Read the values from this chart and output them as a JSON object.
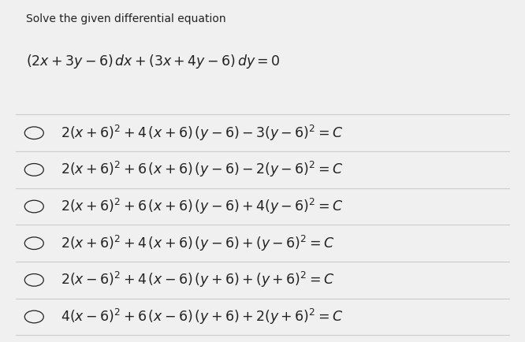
{
  "title": "Solve the given differential equation",
  "equation": "$(2x + 3y - 6)\\,dx + (3x + 4y - 6)\\,dy = 0$",
  "options": [
    "$2(x+6)^2 + 4\\,(x+6)\\,(y-6) - 3(y-6)^2 = C$",
    "$2(x+6)^2 + 6\\,(x+6)\\,(y-6) - 2(y-6)^2 = C$",
    "$2(x+6)^2 + 6\\,(x+6)\\,(y-6) + 4(y-6)^2 = C$",
    "$2(x+6)^2 + 4\\,(x+6)\\,(y-6) + (y-6)^2 = C$",
    "$2(x-6)^2 + 4\\,(x-6)\\,(y+6) + (y+6)^2 = C$",
    "$4(x-6)^2 + 6\\,(x-6)\\,(y+6) + 2(y+6)^2 = C$"
  ],
  "bg_color": "#f0f0f0",
  "text_color": "#222222",
  "line_color": "#cccccc",
  "title_fontsize": 10,
  "eq_fontsize": 12.5,
  "option_fontsize": 12.5,
  "fig_width": 6.66,
  "fig_height": 4.34
}
